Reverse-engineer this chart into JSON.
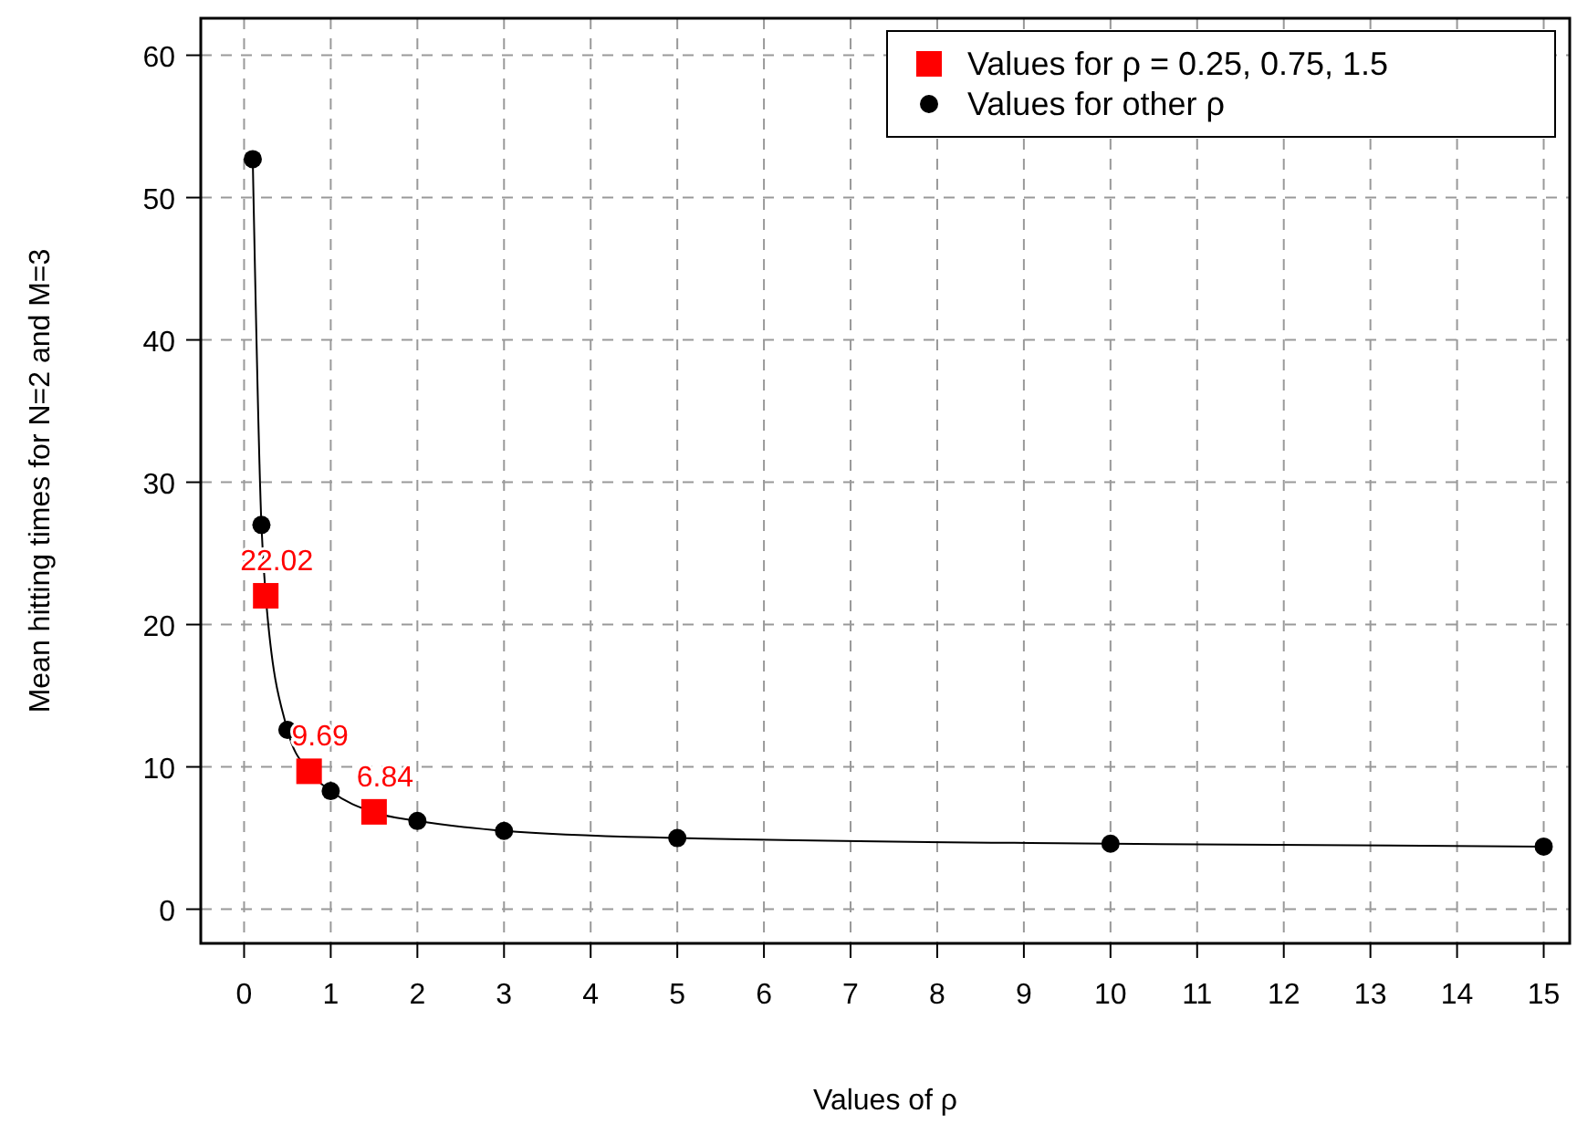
{
  "chart_data": {
    "type": "scatter",
    "xlabel": "Values of ρ",
    "ylabel": "Mean hitting times for N=2 and M=3",
    "xlim": [
      -0.5,
      15.3
    ],
    "ylim": [
      -2.4,
      62.6
    ],
    "xticks": [
      0,
      1,
      2,
      3,
      4,
      5,
      6,
      7,
      8,
      9,
      10,
      11,
      12,
      13,
      14,
      15
    ],
    "yticks": [
      0,
      10,
      20,
      30,
      40,
      50,
      60
    ],
    "grid": true,
    "legend": "top right",
    "series": [
      {
        "type": "line",
        "color": "#000000",
        "marker": "none",
        "x": [
          0.1,
          0.2,
          0.25,
          0.5,
          0.75,
          1,
          1.5,
          2,
          3,
          5,
          10,
          15
        ],
        "values": [
          52.7,
          27.0,
          22.0,
          12.6,
          9.7,
          8.3,
          6.8,
          6.2,
          5.5,
          5.0,
          4.6,
          4.4
        ]
      },
      {
        "name": "Values for ρ = 0.25, 0.75, 1.5",
        "color": "#ff0000",
        "marker": "square",
        "x": [
          0.25,
          0.75,
          1.5
        ],
        "values": [
          22.02,
          9.69,
          6.84
        ],
        "value_labels": [
          "22.02",
          "9.69",
          "6.84"
        ]
      },
      {
        "name": "Values for other ρ",
        "color": "#000000",
        "marker": "circle",
        "x": [
          0.1,
          0.2,
          0.5,
          1,
          2,
          3,
          5,
          10,
          15
        ],
        "values": [
          52.7,
          27.0,
          12.6,
          8.3,
          6.2,
          5.5,
          5.0,
          4.6,
          4.4
        ]
      }
    ]
  }
}
